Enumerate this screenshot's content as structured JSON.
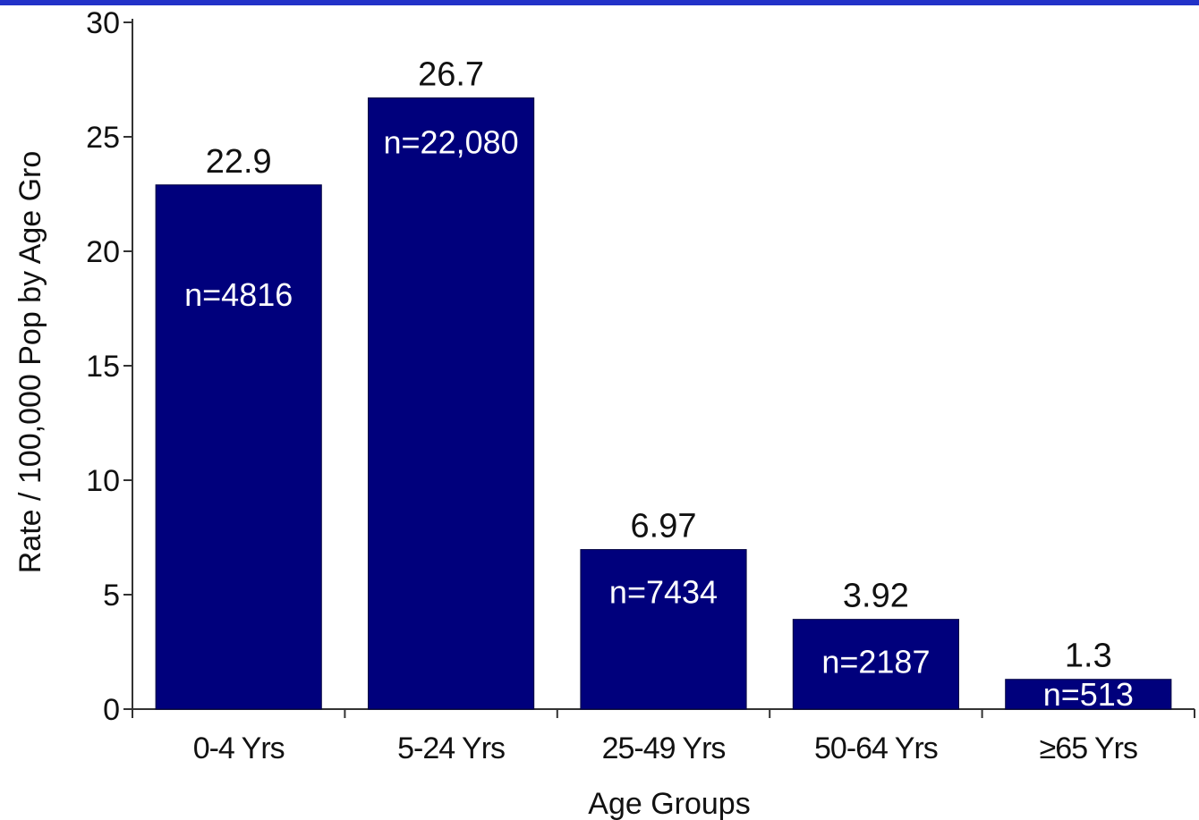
{
  "colors": {
    "bar": "#00007c",
    "top_bar": "#2232c8",
    "axis": "#333333"
  },
  "chart_data": {
    "type": "bar",
    "xlabel": "Age Groups",
    "ylabel": "Rate / 100,000 Pop by Age Gro",
    "ylim": [
      0,
      30
    ],
    "yticks": [
      "0",
      "5",
      "10",
      "15",
      "20",
      "25",
      "30"
    ],
    "grid": false,
    "categories": [
      "0-4 Yrs",
      "5-24 Yrs",
      "25-49 Yrs",
      "50-64 Yrs",
      "≥65  Yrs"
    ],
    "values": [
      22.9,
      26.7,
      6.97,
      3.92,
      1.3
    ],
    "value_labels": [
      "22.9",
      "26.7",
      "6.97",
      "3.92",
      "1.3"
    ],
    "n_labels": [
      "n=4816",
      "n=22,080",
      "n=7434",
      "n=2187",
      "n=513"
    ]
  }
}
